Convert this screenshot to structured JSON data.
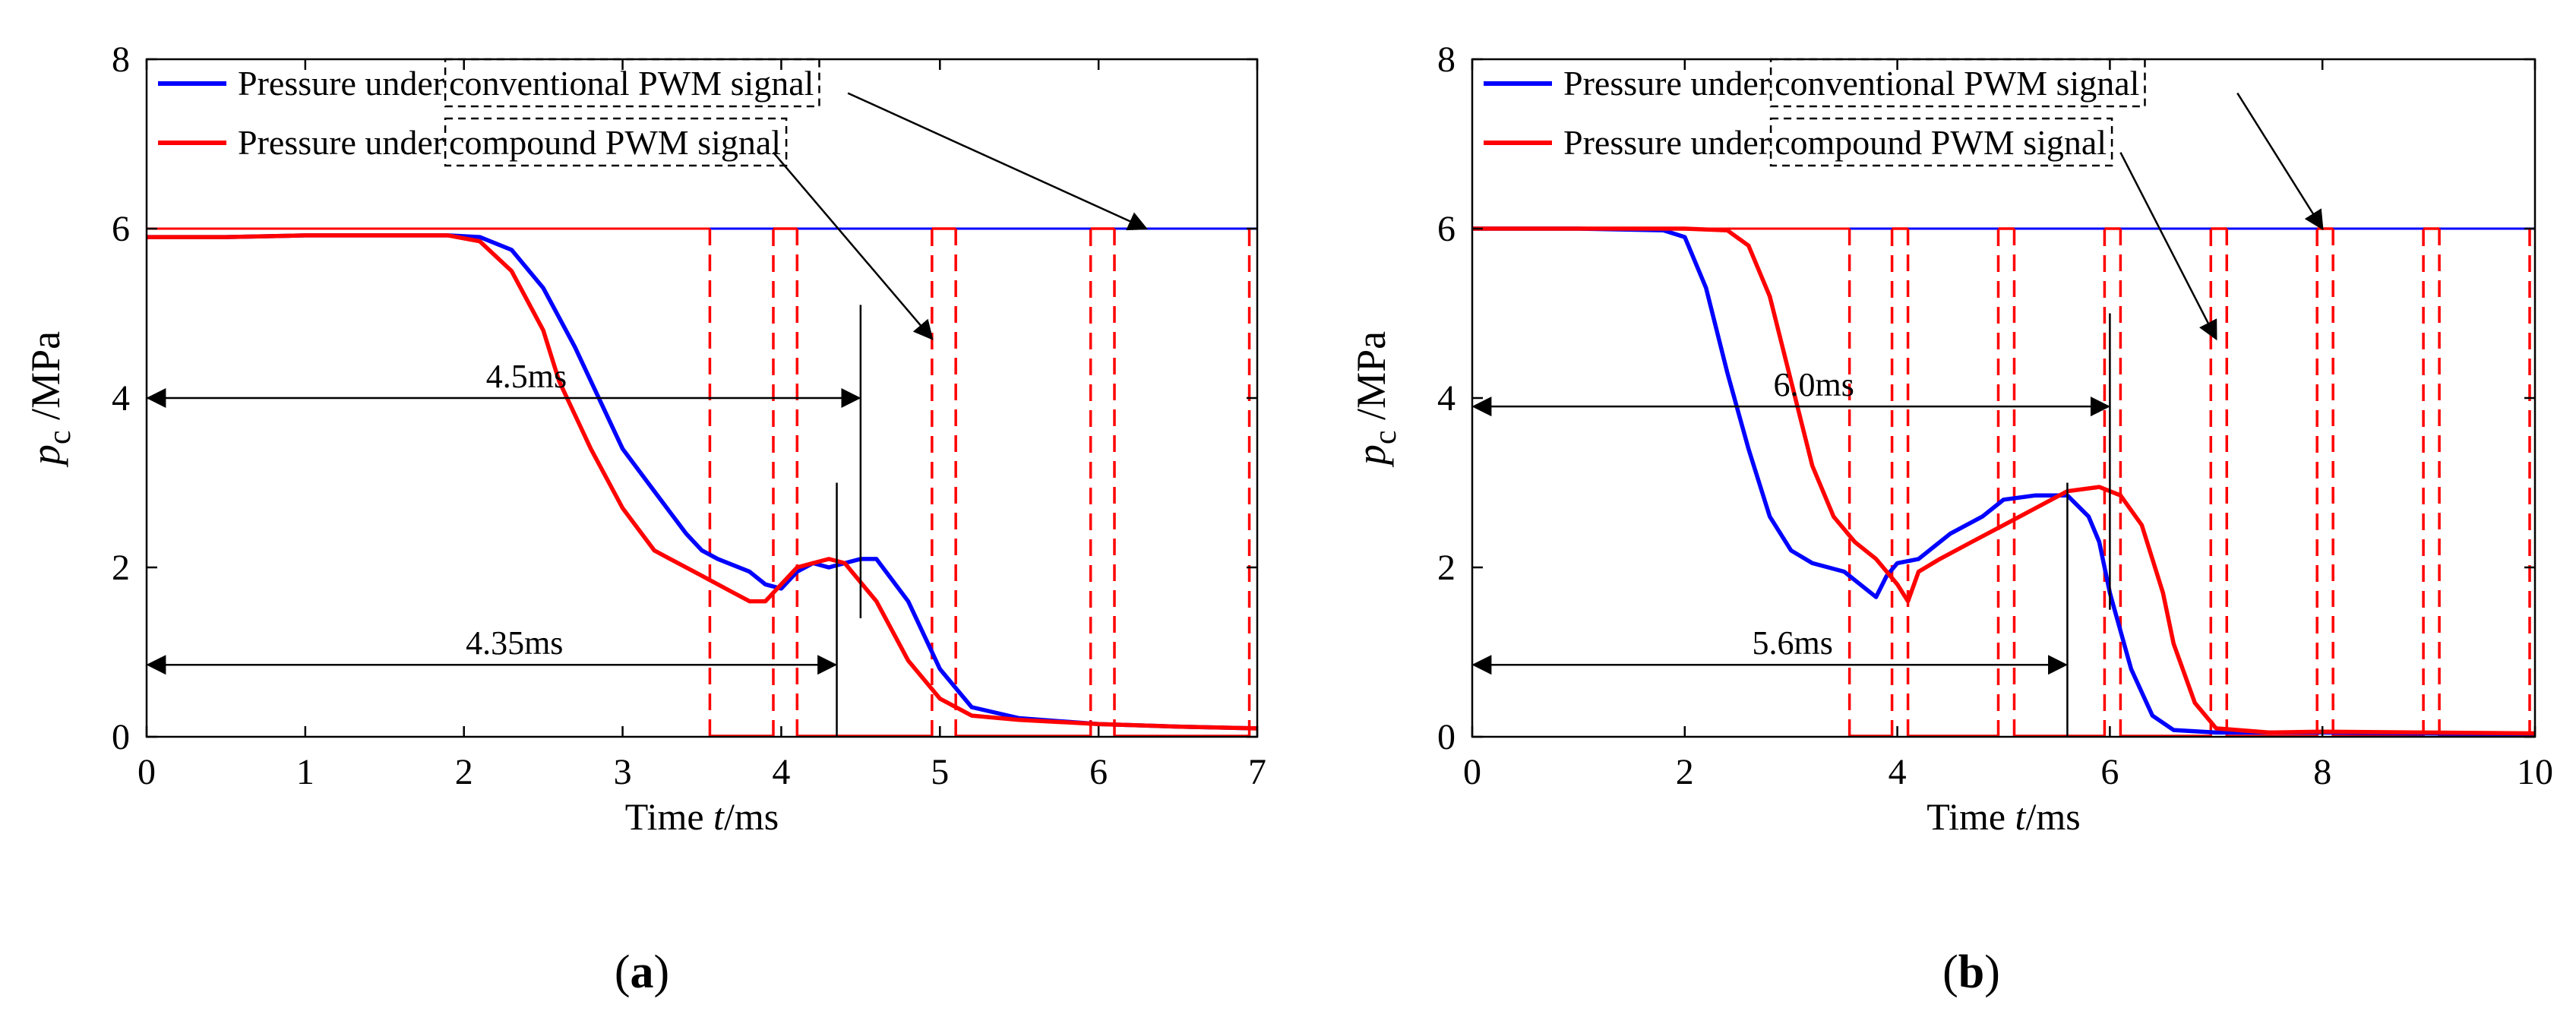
{
  "chart_data": [
    {
      "panel_label": "(a)",
      "type": "line",
      "xlabel_prefix": "Time ",
      "xlabel_var": "t",
      "xlabel_unit": "/ms",
      "ylabel_var": "p",
      "ylabel_sub": "c",
      "ylabel_unit": " /MPa",
      "xlim": [
        0,
        7
      ],
      "ylim": [
        0,
        8
      ],
      "xticks": [
        0,
        1,
        2,
        3,
        4,
        5,
        6,
        7
      ],
      "yticks": [
        0,
        2,
        4,
        6,
        8
      ],
      "colors": {
        "conventional": "#0000ff",
        "compound": "#ff0000",
        "axis": "#000000"
      },
      "legend": {
        "conventional_prefix": "Pressure under ",
        "conventional_boxed": "conventional PWM signal",
        "compound_prefix": "Pressure under ",
        "compound_boxed": "compound PWM signal"
      },
      "series": [
        {
          "name": "Pressure under conventional PWM signal",
          "key": "conventional",
          "x": [
            0,
            0.5,
            1,
            1.5,
            1.9,
            2.1,
            2.3,
            2.5,
            2.7,
            2.9,
            3.0,
            3.2,
            3.4,
            3.5,
            3.6,
            3.8,
            3.9,
            4.0,
            4.1,
            4.2,
            4.3,
            4.4,
            4.5,
            4.6,
            4.8,
            5.0,
            5.2,
            5.5,
            6.0,
            6.5,
            7.0
          ],
          "y": [
            5.9,
            5.9,
            5.92,
            5.92,
            5.92,
            5.9,
            5.75,
            5.3,
            4.6,
            3.8,
            3.4,
            2.9,
            2.4,
            2.2,
            2.1,
            1.95,
            1.8,
            1.75,
            1.95,
            2.05,
            2.0,
            2.05,
            2.1,
            2.1,
            1.6,
            0.8,
            0.35,
            0.22,
            0.15,
            0.12,
            0.1
          ]
        },
        {
          "name": "Pressure under compound PWM signal",
          "key": "compound",
          "x": [
            0,
            0.5,
            1,
            1.5,
            1.9,
            2.1,
            2.3,
            2.5,
            2.6,
            2.8,
            3.0,
            3.2,
            3.3,
            3.5,
            3.7,
            3.8,
            3.9,
            4.0,
            4.1,
            4.2,
            4.3,
            4.4,
            4.6,
            4.8,
            5.0,
            5.2,
            5.5,
            6.0,
            6.5,
            7.0
          ],
          "y": [
            5.9,
            5.9,
            5.92,
            5.92,
            5.92,
            5.85,
            5.5,
            4.8,
            4.2,
            3.4,
            2.7,
            2.2,
            2.1,
            1.9,
            1.7,
            1.6,
            1.6,
            1.8,
            2.0,
            2.05,
            2.1,
            2.05,
            1.6,
            0.9,
            0.45,
            0.25,
            0.2,
            0.15,
            0.12,
            0.1
          ]
        }
      ],
      "pwm_conventional": {
        "level": 6,
        "start": 3.55
      },
      "pwm_compound": [
        3.55,
        3.95,
        4.1,
        4.95,
        5.1,
        5.95,
        6.1,
        6.95
      ],
      "pwm_compound_level_end": 3.55,
      "annotations": {
        "long_label": "4.5ms",
        "long_x": 4.5,
        "long_y": 4.0,
        "short_label": "4.35ms",
        "short_x": 4.35,
        "short_y": 0.85,
        "vline_long": [
          1.4,
          5.1
        ],
        "vline_short": [
          0,
          3.0
        ],
        "conv_arrow_from": [
          4.42,
          7.6
        ],
        "conv_arrow_to": [
          6.3,
          6.0
        ],
        "comp_arrow_from": [
          3.95,
          6.9
        ],
        "comp_arrow_to": [
          4.95,
          4.7
        ]
      }
    },
    {
      "panel_label": "(b)",
      "type": "line",
      "xlabel_prefix": "Time ",
      "xlabel_var": "t",
      "xlabel_unit": "/ms",
      "ylabel_var": "p",
      "ylabel_sub": "c",
      "ylabel_unit": " /MPa",
      "xlim": [
        0,
        10
      ],
      "ylim": [
        0,
        8
      ],
      "xticks": [
        0,
        2,
        4,
        6,
        8,
        10
      ],
      "yticks": [
        0,
        2,
        4,
        6,
        8
      ],
      "colors": {
        "conventional": "#0000ff",
        "compound": "#ff0000",
        "axis": "#000000"
      },
      "legend": {
        "conventional_prefix": "Pressure under ",
        "conventional_boxed": "conventional PWM signal",
        "compound_prefix": "Pressure under ",
        "compound_boxed": "compound PWM signal"
      },
      "series": [
        {
          "name": "Pressure under conventional PWM signal",
          "key": "conventional",
          "x": [
            0,
            1,
            1.8,
            2.0,
            2.2,
            2.4,
            2.6,
            2.8,
            3.0,
            3.2,
            3.5,
            3.7,
            3.8,
            3.9,
            4.0,
            4.2,
            4.5,
            4.8,
            5.0,
            5.3,
            5.6,
            5.8,
            5.9,
            6.0,
            6.2,
            6.4,
            6.6,
            7.0,
            8.0,
            9.0,
            10.0
          ],
          "y": [
            6.0,
            6.0,
            5.98,
            5.9,
            5.3,
            4.3,
            3.4,
            2.6,
            2.2,
            2.05,
            1.95,
            1.75,
            1.65,
            1.9,
            2.05,
            2.1,
            2.4,
            2.6,
            2.8,
            2.85,
            2.85,
            2.6,
            2.3,
            1.7,
            0.8,
            0.25,
            0.08,
            0.05,
            0.05,
            0.04,
            0.03
          ]
        },
        {
          "name": "Pressure under compound PWM signal",
          "key": "compound",
          "x": [
            0,
            1,
            2.0,
            2.4,
            2.6,
            2.8,
            3.0,
            3.2,
            3.4,
            3.6,
            3.8,
            4.0,
            4.1,
            4.2,
            4.4,
            4.7,
            5.0,
            5.3,
            5.6,
            5.9,
            6.1,
            6.3,
            6.5,
            6.6,
            6.8,
            7.0,
            7.5,
            8.0,
            9.0,
            10.0
          ],
          "y": [
            6.0,
            6.0,
            6.0,
            5.98,
            5.8,
            5.2,
            4.2,
            3.2,
            2.6,
            2.3,
            2.1,
            1.8,
            1.6,
            1.95,
            2.1,
            2.3,
            2.5,
            2.7,
            2.9,
            2.95,
            2.85,
            2.5,
            1.7,
            1.1,
            0.4,
            0.1,
            0.05,
            0.06,
            0.05,
            0.04
          ]
        }
      ],
      "pwm_conventional": {
        "level": 6,
        "start": 3.55
      },
      "pwm_compound": [
        3.55,
        3.95,
        4.1,
        4.95,
        5.1,
        5.95,
        6.1,
        6.95,
        7.1,
        7.95,
        8.1,
        8.95,
        9.1,
        9.95
      ],
      "pwm_compound_level_end": 3.55,
      "annotations": {
        "long_label": "6.0ms",
        "long_x": 6.0,
        "long_y": 3.9,
        "short_label": "5.6ms",
        "short_x": 5.6,
        "short_y": 0.85,
        "vline_long": [
          1.5,
          5.0
        ],
        "vline_short": [
          0,
          3.0
        ],
        "conv_arrow_from": [
          7.2,
          7.6
        ],
        "conv_arrow_to": [
          8.0,
          6.0
        ],
        "comp_arrow_from": [
          6.1,
          6.9
        ],
        "comp_arrow_to": [
          7.0,
          4.7
        ]
      }
    }
  ]
}
